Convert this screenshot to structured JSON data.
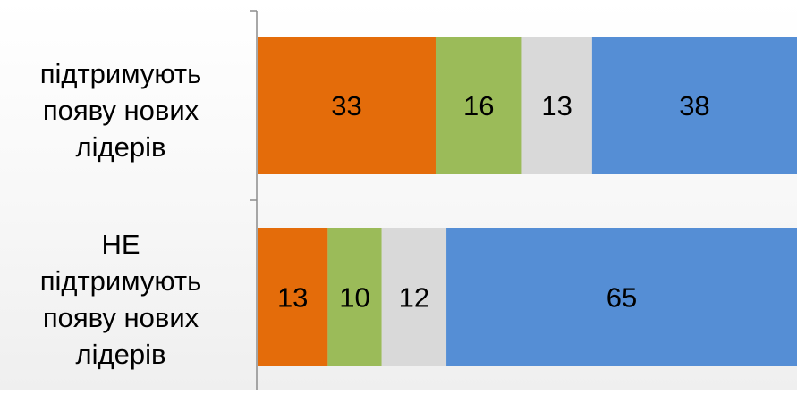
{
  "chart_data": {
    "type": "bar",
    "orientation": "horizontal",
    "stacked": "100%",
    "categories": [
      [
        "підтримують",
        "появу нових",
        "лідерів"
      ],
      [
        "НЕ",
        "підтримують",
        "появу нових",
        "лідерів"
      ]
    ],
    "series": [
      {
        "color": "#E46C0A",
        "values": [
          33,
          13
        ]
      },
      {
        "color": "#9BBB59",
        "values": [
          16,
          10
        ]
      },
      {
        "color": "#D9D9D9",
        "values": [
          13,
          12
        ]
      },
      {
        "color": "#558ED5",
        "values": [
          38,
          65
        ]
      }
    ],
    "xlim": [
      0,
      100
    ],
    "data_labels": true,
    "grid": false,
    "legend": "none"
  }
}
